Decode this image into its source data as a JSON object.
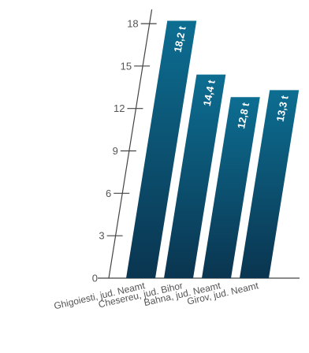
{
  "chart_data": {
    "type": "bar",
    "title": "",
    "xlabel": "",
    "ylabel": "",
    "categories": [
      "Ghigoiesti, jud. Neamt",
      "Chesereu, jud. Bihor",
      "Bahna, jud. Neamt",
      "Girov, jud. Neamt"
    ],
    "values": [
      18.2,
      14.4,
      12.8,
      13.3
    ],
    "data_labels": [
      "18,2 t",
      "14,4 t",
      "12,8 t",
      "13,3 t"
    ],
    "y_ticks": [
      "0",
      "3",
      "6",
      "9",
      "12",
      "15",
      "18"
    ],
    "ylim": [
      0,
      18
    ],
    "grid": false,
    "legend": "none",
    "colors": {
      "bar_top": "#0d6e92",
      "bar_bottom": "#0a3550",
      "axis": "#444444",
      "text": "#555555"
    }
  }
}
